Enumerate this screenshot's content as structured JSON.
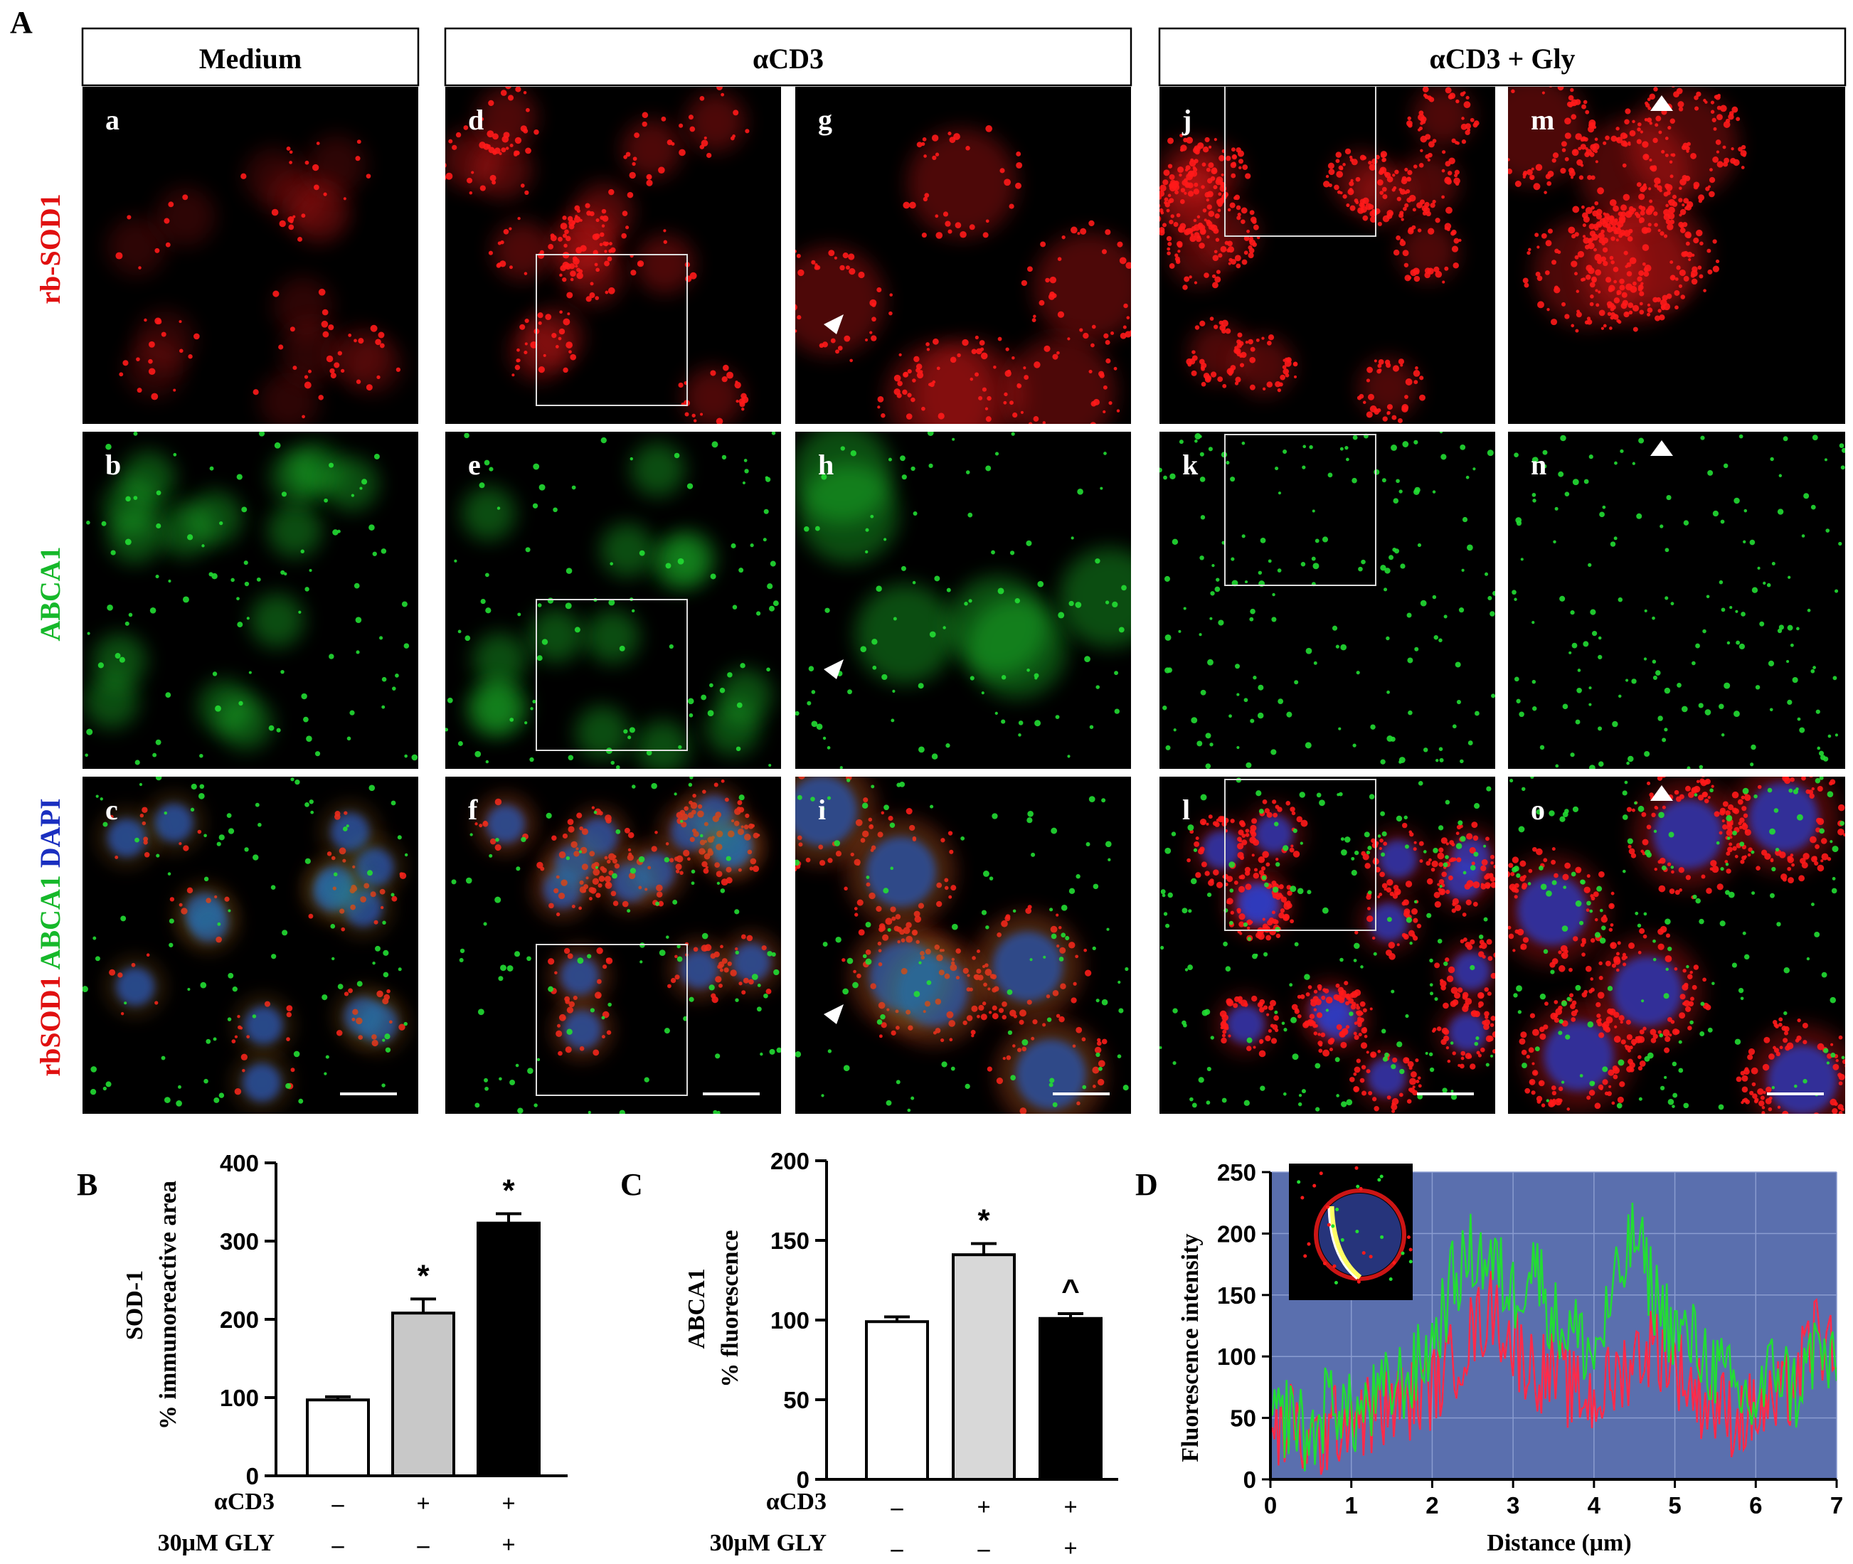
{
  "figure": {
    "panel_A_letter": "A",
    "columns": [
      "Medium",
      "αCD3",
      "αCD3 + Gly"
    ],
    "row_labels": {
      "row1": "rb-SOD1",
      "row2": "ABCA1",
      "row3_parts": [
        "rbSOD1",
        "ABCA1",
        "DAPI"
      ]
    },
    "micro_labels": [
      "a",
      "b",
      "c",
      "d",
      "e",
      "f",
      "g",
      "h",
      "i",
      "j",
      "k",
      "l",
      "m",
      "n",
      "o"
    ],
    "colors": {
      "red": "#ff1a1a",
      "green": "#22dd33",
      "blue": "#2a3cc8",
      "plot_bg": "#5a6fae"
    }
  },
  "panel_B": {
    "letter": "B",
    "ylabel_line1": "SOD-1",
    "ylabel_line2": "% immunoreactive area",
    "treatments": [
      {
        "label": "αCD3",
        "marks": [
          "–",
          "+",
          "+"
        ]
      },
      {
        "label": "30μM GLY",
        "marks": [
          "–",
          "–",
          "+"
        ]
      }
    ],
    "significance": [
      "",
      "*",
      "*"
    ]
  },
  "panel_C": {
    "letter": "C",
    "ylabel_line1": "ABCA1",
    "ylabel_line2": "% fluorescence",
    "treatments": [
      {
        "label": "αCD3",
        "marks": [
          "–",
          "+",
          "+"
        ]
      },
      {
        "label": "30μM GLY",
        "marks": [
          "–",
          "–",
          "+"
        ]
      }
    ],
    "significance": [
      "",
      "*",
      "^"
    ]
  },
  "panel_D": {
    "letter": "D",
    "xlabel": "Distance (μm)",
    "ylabel": "Fluorescence intensity"
  },
  "chart_data": [
    {
      "type": "bar",
      "ylabel": "SOD-1 % immunoreactive area",
      "ylim": [
        0,
        400
      ],
      "yticks": [
        0,
        100,
        200,
        300,
        400
      ],
      "values": [
        97,
        208,
        323
      ],
      "errors": [
        4,
        18,
        12
      ],
      "bar_colors": [
        "#ffffff",
        "#c8c8c8",
        "#000000"
      ]
    },
    {
      "type": "bar",
      "ylabel": "ABCA1 % fluorescence",
      "ylim": [
        0,
        200
      ],
      "yticks": [
        0,
        50,
        100,
        150,
        200
      ],
      "values": [
        99,
        141,
        101
      ],
      "errors": [
        3,
        7,
        3
      ],
      "bar_colors": [
        "#ffffff",
        "#d8d8d8",
        "#000000"
      ]
    },
    {
      "type": "line",
      "xlabel": "Distance (μm)",
      "ylabel": "Fluorescence intensity",
      "xlim": [
        0,
        7
      ],
      "ylim": [
        0,
        250
      ],
      "xticks": [
        0,
        1,
        2,
        3,
        4,
        5,
        6,
        7
      ],
      "yticks": [
        0,
        50,
        100,
        150,
        200,
        250
      ],
      "grid": true,
      "series": [
        {
          "color": "#22dd33",
          "x": [
            0,
            0.25,
            0.5,
            0.75,
            1,
            1.25,
            1.5,
            1.75,
            2,
            2.25,
            2.5,
            2.75,
            3,
            3.25,
            3.5,
            3.75,
            4,
            4.25,
            4.5,
            4.75,
            5,
            5.25,
            5.5,
            5.75,
            6,
            6.25,
            6.5,
            6.75,
            7
          ],
          "y": [
            40,
            55,
            30,
            70,
            50,
            60,
            75,
            85,
            110,
            160,
            185,
            175,
            150,
            180,
            130,
            120,
            100,
            150,
            200,
            150,
            120,
            110,
            90,
            70,
            60,
            95,
            70,
            110,
            80
          ]
        },
        {
          "color": "#ff2a4a",
          "x": [
            0,
            0.25,
            0.5,
            0.75,
            1,
            1.25,
            1.5,
            1.75,
            2,
            2.25,
            2.5,
            2.75,
            3,
            3.25,
            3.5,
            3.75,
            4,
            4.25,
            4.5,
            4.75,
            5,
            5.25,
            5.5,
            5.75,
            6,
            6.25,
            6.5,
            6.75,
            7
          ],
          "y": [
            30,
            45,
            25,
            40,
            55,
            50,
            60,
            65,
            75,
            95,
            120,
            140,
            110,
            90,
            85,
            70,
            65,
            80,
            100,
            110,
            95,
            70,
            60,
            50,
            55,
            60,
            80,
            120,
            90
          ]
        }
      ]
    }
  ]
}
